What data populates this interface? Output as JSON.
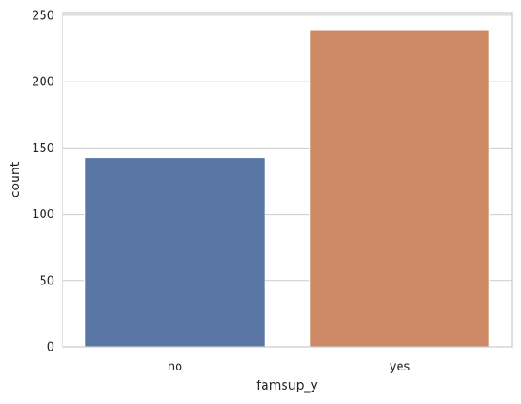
{
  "chart_data": {
    "type": "bar",
    "categories": [
      "no",
      "yes"
    ],
    "values": [
      143,
      239
    ],
    "title": "",
    "xlabel": "famsup_y",
    "ylabel": "count",
    "ylim": [
      0,
      252
    ],
    "yticks": [
      0,
      50,
      100,
      150,
      200,
      250
    ],
    "grid": "y",
    "legend": "none",
    "colors": [
      "#5975a4",
      "#cc8963"
    ],
    "gridColor": "#cccccc",
    "spineColor": "#cccccc"
  }
}
